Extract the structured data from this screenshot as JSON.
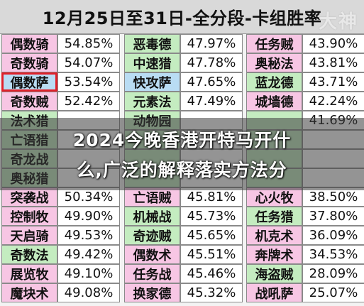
{
  "header": {
    "title": "12月25日至31日-全分段-卡组胜率",
    "logo": "大神"
  },
  "colors": {
    "pink": "#f7c6e4",
    "green": "#c4ecc0",
    "blue": "#b9dcf3",
    "highlight": "#e0202a"
  },
  "rows": [
    {
      "cells": [
        {
          "name": "偶数骑",
          "pct": "54.85%",
          "bg": "pink"
        },
        {
          "name": "恶毒德",
          "pct": "47.97%",
          "bg": "green"
        },
        {
          "name": "任务贼",
          "pct": "43.90%",
          "bg": "pink"
        }
      ]
    },
    {
      "cells": [
        {
          "name": "奇数骑",
          "pct": "54.07%",
          "bg": "pink"
        },
        {
          "name": "中速猎",
          "pct": "47.78%",
          "bg": "green"
        },
        {
          "name": "奥秘法",
          "pct": "43.81%",
          "bg": "pink"
        }
      ]
    },
    {
      "cells": [
        {
          "name": "偶数萨",
          "pct": "53.54%",
          "bg": "blue",
          "hl": true
        },
        {
          "name": "快攻萨",
          "pct": "47.65%",
          "bg": "blue"
        },
        {
          "name": "蓝龙德",
          "pct": "43.71%",
          "bg": "green"
        }
      ]
    },
    {
      "cells": [
        {
          "name": "奇数贼",
          "pct": "52.42%",
          "bg": "pink"
        },
        {
          "name": "元素法",
          "pct": "47.49%",
          "bg": "green"
        },
        {
          "name": "城墙德",
          "pct": "42.24%",
          "bg": "pink"
        }
      ]
    },
    {
      "cells": [
        {
          "name": "法术猎",
          "pct": "",
          "bg": "green"
        },
        {
          "name": "动物园",
          "pct": "",
          "bg": "green"
        },
        {
          "name": "",
          "pct": "41.69%",
          "bg": "green"
        }
      ]
    },
    {
      "cells": [
        {
          "name": "亡语猎",
          "pct": "",
          "bg": "green"
        },
        {
          "name": "",
          "pct": "",
          "bg": "green"
        },
        {
          "name": "",
          "pct": "",
          "bg": "green"
        }
      ]
    },
    {
      "cells": [
        {
          "name": "奇龙战",
          "pct": "",
          "bg": "green"
        },
        {
          "name": "",
          "pct": "",
          "bg": "green"
        },
        {
          "name": "",
          "pct": "",
          "bg": "green"
        }
      ]
    },
    {
      "cells": [
        {
          "name": "奥秘猎",
          "pct": "",
          "bg": "green"
        },
        {
          "name": "",
          "pct": "",
          "bg": "green"
        },
        {
          "name": "",
          "pct": "",
          "bg": "green"
        }
      ]
    },
    {
      "cells": [
        {
          "name": "突袭战",
          "pct": "50.34%",
          "bg": "pink"
        },
        {
          "name": "亡语贼",
          "pct": "45.81%",
          "bg": "pink"
        },
        {
          "name": "心火牧",
          "pct": "38.50%",
          "bg": "pink"
        }
      ]
    },
    {
      "cells": [
        {
          "name": "控制牧",
          "pct": "49.90%",
          "bg": "pink"
        },
        {
          "name": "机械战",
          "pct": "45.73%",
          "bg": "green"
        },
        {
          "name": "任务猎",
          "pct": "37.80%",
          "bg": "green"
        }
      ]
    },
    {
      "cells": [
        {
          "name": "天启骑",
          "pct": "49.53%",
          "bg": "pink"
        },
        {
          "name": "奇迹贼",
          "pct": "45.65%",
          "bg": "green"
        },
        {
          "name": "机克术",
          "pct": "36.09%",
          "bg": "pink"
        }
      ]
    },
    {
      "cells": [
        {
          "name": "奇数法",
          "pct": "49.42%",
          "bg": "green"
        },
        {
          "name": "偶数术",
          "pct": "45.51%",
          "bg": "pink"
        },
        {
          "name": "奔牌术",
          "pct": "34.53%",
          "bg": "pink"
        }
      ]
    },
    {
      "cells": [
        {
          "name": "展览牧",
          "pct": "49.10%",
          "bg": "pink"
        },
        {
          "name": "任务战",
          "pct": "45.46%",
          "bg": "pink"
        },
        {
          "name": "海盗贼",
          "pct": "28.09%",
          "bg": "green"
        }
      ]
    },
    {
      "cells": [
        {
          "name": "魔块术",
          "pct": "49.08%",
          "bg": "pink"
        },
        {
          "name": "换家德",
          "pct": "45.32%",
          "bg": "pink"
        },
        {
          "name": "战吼萨",
          "pct": "25.07%",
          "bg": "pink"
        }
      ]
    }
  ],
  "banner": {
    "line1": "2024今晚香港开特马开什",
    "line2": "么,广泛的解释落实方法分"
  }
}
